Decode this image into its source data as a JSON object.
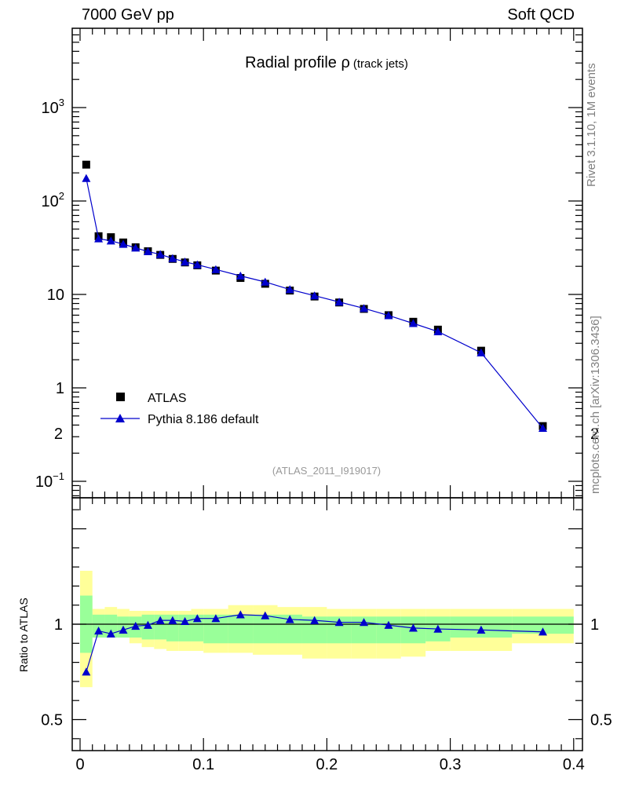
{
  "header": {
    "energy_label": "7000 GeV pp",
    "category_label": "Soft QCD"
  },
  "side_labels": {
    "rivet": "Rivet 3.1.10,  1M events",
    "mcplots": "mcplots.cern.ch [arXiv:1306.3436]"
  },
  "chart_data": [
    {
      "type": "scatter",
      "title": "Radial profile ρ",
      "title_suffix": "(track jets)",
      "watermark": "(ATLAS_2011_I919017)",
      "y_scale": "log",
      "xlim": [
        0,
        0.4
      ],
      "ylim": [
        0.07,
        8000
      ],
      "grid": false,
      "legend_position": "bottom-left",
      "y_tick_labels": [
        {
          "value": 0.1,
          "label": "10",
          "exp": "−1"
        },
        {
          "value": 1,
          "label": "1",
          "exp": ""
        },
        {
          "value": 10,
          "label": "10",
          "exp": ""
        },
        {
          "value": 100,
          "label": "10",
          "exp": "2"
        },
        {
          "value": 1000,
          "label": "10",
          "exp": "3"
        }
      ],
      "series": [
        {
          "name": "ATLAS",
          "color": "#000000",
          "marker": "square",
          "x": [
            0.005,
            0.015,
            0.025,
            0.035,
            0.045,
            0.055,
            0.065,
            0.075,
            0.085,
            0.095,
            0.11,
            0.13,
            0.15,
            0.17,
            0.19,
            0.21,
            0.23,
            0.25,
            0.27,
            0.29,
            0.325,
            0.375
          ],
          "y": [
            245,
            42,
            41,
            36,
            32,
            29,
            26.5,
            24,
            22,
            20.5,
            18,
            15,
            13,
            11,
            9.5,
            8.2,
            7,
            6,
            5.1,
            4.2,
            2.5,
            0.39
          ]
        },
        {
          "name": "Pythia 8.186 default",
          "color": "#0000cc",
          "marker": "triangle",
          "x": [
            0.005,
            0.015,
            0.025,
            0.035,
            0.045,
            0.055,
            0.065,
            0.075,
            0.085,
            0.095,
            0.11,
            0.13,
            0.15,
            0.17,
            0.19,
            0.21,
            0.23,
            0.25,
            0.27,
            0.29,
            0.325,
            0.375
          ],
          "y": [
            175,
            39.5,
            37.5,
            34.5,
            31.5,
            28.8,
            26.8,
            24.3,
            22.3,
            20.8,
            18.5,
            15.8,
            13.6,
            11.3,
            9.7,
            8.3,
            7.1,
            5.95,
            4.9,
            4,
            2.38,
            0.37
          ]
        }
      ]
    },
    {
      "type": "line",
      "ylabel": "Ratio to ATLAS",
      "xlim": [
        0,
        0.4
      ],
      "ylim": [
        0.4,
        2.4
      ],
      "reference": 1,
      "x_tick_labels": [
        "0",
        "0.1",
        "0.2",
        "0.3",
        "0.4"
      ],
      "y_tick_labels": [
        "0.5",
        "1",
        "2"
      ],
      "bands": {
        "bin_edges": [
          0,
          0.01,
          0.02,
          0.03,
          0.04,
          0.05,
          0.06,
          0.07,
          0.08,
          0.09,
          0.1,
          0.12,
          0.14,
          0.16,
          0.18,
          0.2,
          0.22,
          0.24,
          0.26,
          0.28,
          0.3,
          0.35,
          0.4
        ],
        "inner_color": "#99ff99",
        "outer_color": "#ffff99",
        "inner_lo": [
          0.85,
          0.93,
          0.93,
          0.93,
          0.93,
          0.92,
          0.92,
          0.91,
          0.91,
          0.91,
          0.9,
          0.9,
          0.9,
          0.9,
          0.9,
          0.9,
          0.9,
          0.9,
          0.9,
          0.91,
          0.93,
          0.95
        ],
        "inner_hi": [
          1.15,
          1.05,
          1.05,
          1.04,
          1.04,
          1.05,
          1.05,
          1.05,
          1.05,
          1.05,
          1.05,
          1.05,
          1.05,
          1.05,
          1.04,
          1.04,
          1.04,
          1.04,
          1.04,
          1.04,
          1.04,
          1.04
        ],
        "outer_lo": [
          0.67,
          0.94,
          0.94,
          0.94,
          0.9,
          0.88,
          0.87,
          0.86,
          0.86,
          0.86,
          0.85,
          0.85,
          0.84,
          0.84,
          0.82,
          0.82,
          0.82,
          0.82,
          0.83,
          0.86,
          0.86,
          0.9
        ],
        "outer_hi": [
          1.28,
          1.08,
          1.09,
          1.08,
          1.07,
          1.07,
          1.07,
          1.07,
          1.07,
          1.08,
          1.08,
          1.1,
          1.1,
          1.09,
          1.09,
          1.08,
          1.08,
          1.08,
          1.08,
          1.08,
          1.08,
          1.08
        ]
      },
      "series": [
        {
          "name": "Pythia 8.186 default",
          "color": "#0000cc",
          "marker": "triangle",
          "x": [
            0.005,
            0.015,
            0.025,
            0.035,
            0.045,
            0.055,
            0.065,
            0.075,
            0.085,
            0.095,
            0.11,
            0.13,
            0.15,
            0.17,
            0.19,
            0.21,
            0.23,
            0.25,
            0.27,
            0.29,
            0.325,
            0.375
          ],
          "y": [
            0.75,
            0.965,
            0.95,
            0.97,
            0.99,
            0.995,
            1.02,
            1.02,
            1.015,
            1.03,
            1.03,
            1.05,
            1.045,
            1.025,
            1.02,
            1.01,
            1.01,
            0.995,
            0.98,
            0.975,
            0.97,
            0.96
          ]
        }
      ]
    }
  ]
}
